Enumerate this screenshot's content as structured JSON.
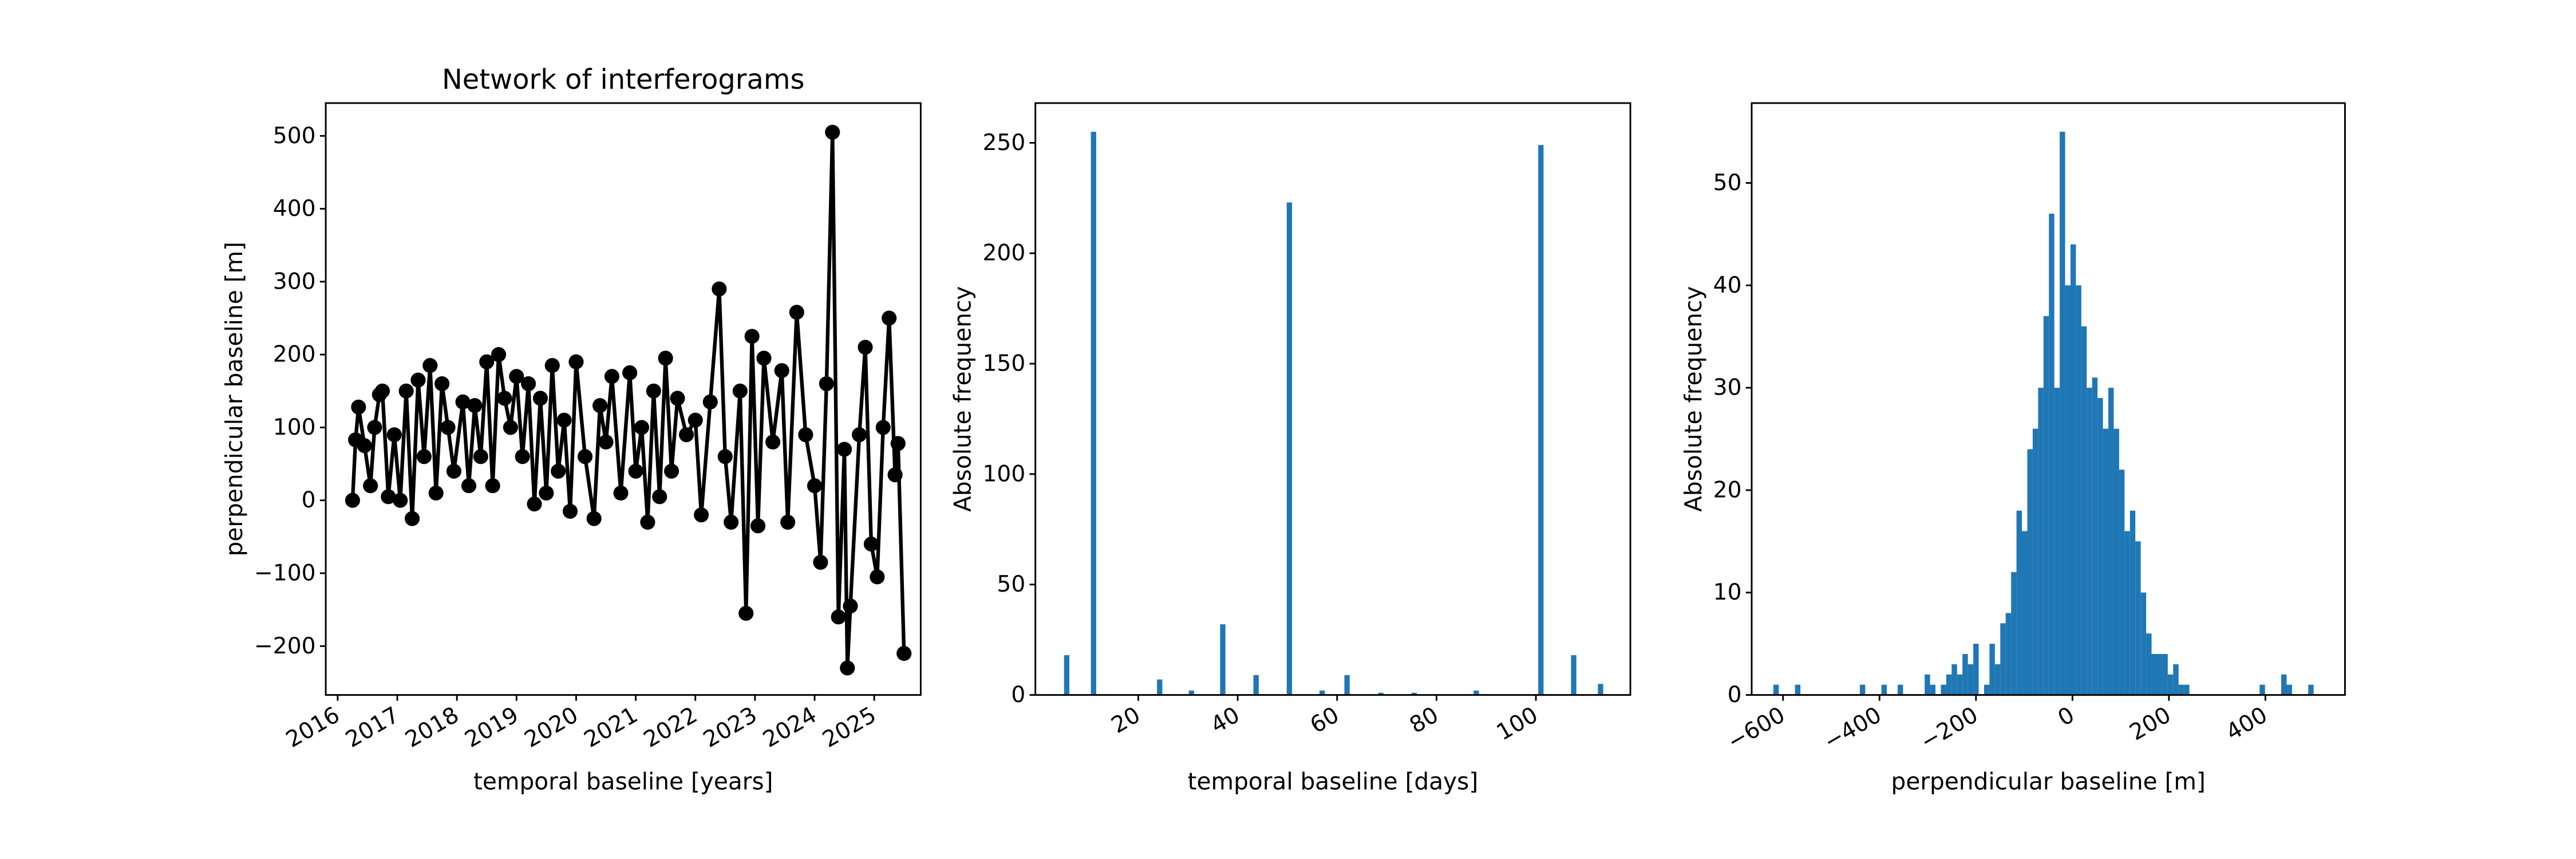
{
  "chart_data": [
    {
      "type": "line",
      "title": "Network of interferograms",
      "xlabel": "temporal baseline [years]",
      "ylabel": "perpendicular baseline [m]",
      "color": "#000000",
      "x": [
        2016.25,
        2016.3,
        2016.35,
        2016.45,
        2016.55,
        2016.62,
        2016.7,
        2016.75,
        2016.85,
        2016.95,
        2017.05,
        2017.15,
        2017.25,
        2017.35,
        2017.45,
        2017.55,
        2017.65,
        2017.75,
        2017.85,
        2017.95,
        2018.1,
        2018.2,
        2018.3,
        2018.4,
        2018.5,
        2018.6,
        2018.7,
        2018.8,
        2018.9,
        2019.0,
        2019.1,
        2019.2,
        2019.3,
        2019.4,
        2019.5,
        2019.6,
        2019.7,
        2019.8,
        2019.9,
        2020.0,
        2020.15,
        2020.3,
        2020.4,
        2020.5,
        2020.6,
        2020.75,
        2020.9,
        2021.0,
        2021.1,
        2021.2,
        2021.3,
        2021.4,
        2021.5,
        2021.6,
        2021.7,
        2021.85,
        2022.0,
        2022.1,
        2022.25,
        2022.4,
        2022.5,
        2022.6,
        2022.75,
        2022.85,
        2022.95,
        2023.05,
        2023.15,
        2023.3,
        2023.45,
        2023.55,
        2023.7,
        2023.85,
        2024.0,
        2024.1,
        2024.2,
        2024.3,
        2024.4,
        2024.5,
        2024.55,
        2024.6,
        2024.75,
        2024.85,
        2024.95,
        2025.05,
        2025.15,
        2025.25,
        2025.35,
        2025.4,
        2025.5
      ],
      "values": [
        0,
        83,
        128,
        75,
        20,
        100,
        145,
        150,
        5,
        90,
        0,
        150,
        -25,
        165,
        60,
        185,
        10,
        160,
        100,
        40,
        135,
        20,
        130,
        60,
        190,
        20,
        200,
        140,
        100,
        170,
        60,
        160,
        -5,
        140,
        10,
        185,
        40,
        110,
        -15,
        190,
        60,
        -25,
        130,
        80,
        170,
        10,
        175,
        40,
        100,
        -30,
        150,
        5,
        195,
        40,
        140,
        90,
        110,
        -20,
        135,
        290,
        60,
        -30,
        150,
        -155,
        225,
        -35,
        195,
        80,
        178,
        -30,
        258,
        90,
        20,
        -85,
        160,
        505,
        -160,
        70,
        -230,
        -145,
        90,
        210,
        -60,
        -105,
        100,
        250,
        35,
        78,
        -210
      ],
      "xlim": [
        2015.8,
        2025.78
      ],
      "xticks": [
        2016,
        2017,
        2018,
        2019,
        2020,
        2021,
        2022,
        2023,
        2024,
        2025
      ],
      "ylim": [
        -267,
        545
      ],
      "yticks": [
        {
          "value": -200,
          "label": "−200"
        },
        {
          "value": -100,
          "label": "−100"
        },
        0,
        100,
        200,
        300,
        400,
        500
      ]
    },
    {
      "type": "bar",
      "xlabel": "temporal baseline [days]",
      "ylabel": "Absolute frequency",
      "color": "#1f77b4",
      "x": [
        5.6,
        11,
        24.3,
        30.7,
        37,
        43.7,
        50.4,
        57,
        62,
        68.8,
        75.5,
        88,
        101,
        107.6,
        113
      ],
      "values": [
        18,
        255,
        7,
        2,
        32,
        9,
        223,
        2,
        9,
        1,
        1,
        2,
        249,
        18,
        5
      ],
      "xlim": [
        -0.7,
        119
      ],
      "xticks": [
        20,
        40,
        60,
        80,
        100
      ],
      "ylim": [
        0,
        268
      ],
      "yticks": [
        0,
        50,
        100,
        150,
        200,
        250
      ]
    },
    {
      "type": "histogram",
      "xlabel": "perpendicular baseline [m]",
      "ylabel": "Absolute frequency",
      "color": "#1f77b4",
      "bins": [
        -620,
        -608.8,
        -597.6,
        -586.4,
        -575.2,
        -564,
        -552.8,
        -541.6,
        -530.4,
        -519.2,
        -508,
        -496.8,
        -485.6,
        -474.4,
        -463.2,
        -452,
        -440.8,
        -429.6,
        -418.4,
        -407.2,
        -396,
        -384.8,
        -373.6,
        -362.4,
        -351.2,
        -340,
        -328.8,
        -317.6,
        -306.4,
        -295.2,
        -284,
        -272.8,
        -261.6,
        -250.4,
        -239.2,
        -228,
        -216.8,
        -205.6,
        -194.4,
        -183.2,
        -172,
        -160.8,
        -149.6,
        -138.4,
        -127.2,
        -116,
        -104.8,
        -93.6,
        -82.4,
        -71.2,
        -60,
        -48.8,
        -37.6,
        -26.4,
        -15.2,
        -4,
        7.2,
        18.4,
        29.6,
        40.8,
        52,
        63.2,
        74.4,
        85.6,
        96.8,
        108,
        119.2,
        130.4,
        141.6,
        152.8,
        164,
        175.2,
        186.4,
        197.6,
        208.8,
        220,
        231.2,
        242.4,
        253.6,
        264.8,
        276,
        287.2,
        298.4,
        309.6,
        320.8,
        332,
        343.2,
        354.4,
        365.6,
        376.8,
        388,
        399.2,
        410.4,
        421.6,
        432.8,
        444,
        455.2,
        466.4,
        477.6,
        488.8,
        500
      ],
      "counts": [
        1,
        0,
        0,
        0,
        1,
        0,
        0,
        0,
        0,
        0,
        0,
        0,
        0,
        0,
        0,
        0,
        1,
        0,
        0,
        0,
        1,
        0,
        0,
        1,
        0,
        0,
        0,
        0,
        2,
        1,
        0,
        1,
        2,
        3,
        2,
        4,
        3,
        5,
        0,
        1,
        5,
        3,
        7,
        8,
        12,
        18,
        16,
        24,
        26,
        30,
        37,
        47,
        30,
        55,
        40,
        44,
        40,
        36,
        30,
        31,
        29,
        26,
        30,
        26,
        22,
        16,
        18,
        15,
        10,
        6,
        4,
        4,
        4,
        2,
        3,
        1,
        1,
        0,
        0,
        0,
        0,
        0,
        0,
        0,
        0,
        0,
        0,
        0,
        0,
        0,
        1,
        0,
        0,
        0,
        2,
        1,
        0,
        0,
        0,
        1
      ],
      "xlim": [
        -665,
        565
      ],
      "xticks": [
        {
          "value": -600,
          "label": "−600"
        },
        {
          "value": -400,
          "label": "−400"
        },
        {
          "value": -200,
          "label": "−200"
        },
        0,
        200,
        400
      ],
      "ylim": [
        0,
        57.8
      ],
      "yticks": [
        0,
        10,
        20,
        30,
        40,
        50
      ]
    }
  ]
}
